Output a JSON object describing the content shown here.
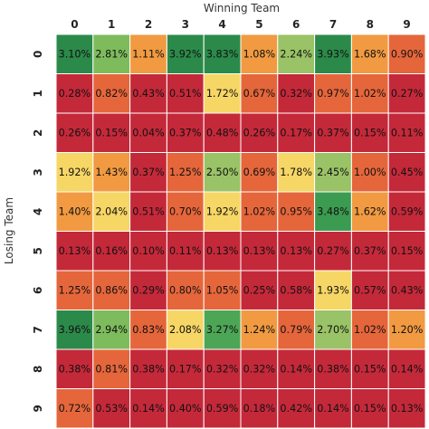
{
  "chart_data": {
    "type": "heatmap",
    "xlabel": "Winning Team",
    "ylabel": "Losing Team",
    "x_categories": [
      "0",
      "1",
      "2",
      "3",
      "4",
      "5",
      "6",
      "7",
      "8",
      "9"
    ],
    "y_categories": [
      "0",
      "1",
      "2",
      "3",
      "4",
      "5",
      "6",
      "7",
      "8",
      "9"
    ],
    "legend": "none",
    "grid": false,
    "color_scale": [
      "#c4293a",
      "#e5663b",
      "#f19a41",
      "#f6d665",
      "#9ac266",
      "#2b8a4a"
    ],
    "value_format": "percent_2dp",
    "values": [
      [
        3.1,
        2.81,
        1.11,
        3.92,
        3.83,
        1.08,
        2.24,
        3.93,
        1.68,
        0.9
      ],
      [
        0.28,
        0.82,
        0.43,
        0.51,
        1.72,
        0.67,
        0.32,
        0.97,
        1.02,
        0.27
      ],
      [
        0.26,
        0.15,
        0.04,
        0.37,
        0.48,
        0.26,
        0.17,
        0.37,
        0.15,
        0.11
      ],
      [
        1.92,
        1.43,
        0.37,
        1.25,
        2.5,
        0.69,
        1.78,
        2.45,
        1.0,
        0.45
      ],
      [
        1.4,
        2.04,
        0.51,
        0.7,
        1.92,
        1.02,
        0.95,
        3.48,
        1.62,
        0.59
      ],
      [
        0.13,
        0.16,
        0.1,
        0.11,
        0.13,
        0.13,
        0.13,
        0.27,
        0.37,
        0.15
      ],
      [
        1.25,
        0.86,
        0.29,
        0.8,
        1.05,
        0.25,
        0.58,
        1.93,
        0.57,
        0.43
      ],
      [
        3.96,
        2.94,
        0.83,
        2.08,
        3.27,
        1.24,
        0.79,
        2.7,
        1.02,
        1.2
      ],
      [
        0.38,
        0.81,
        0.38,
        0.17,
        0.32,
        0.32,
        0.14,
        0.38,
        0.15,
        0.14
      ],
      [
        0.72,
        0.53,
        0.14,
        0.4,
        0.59,
        0.18,
        0.42,
        0.14,
        0.15,
        0.13
      ]
    ],
    "cell_colors": [
      [
        "#2b8a4a",
        "#7dbb5c",
        "#f19a41",
        "#2b8a4a",
        "#2b8a4a",
        "#f19a41",
        "#9ac266",
        "#2b8a4a",
        "#f19a41",
        "#e5663b"
      ],
      [
        "#c4293a",
        "#e5663b",
        "#c4293a",
        "#c4293a",
        "#f6d665",
        "#e5663b",
        "#c4293a",
        "#e5663b",
        "#e5663b",
        "#c4293a"
      ],
      [
        "#c4293a",
        "#c4293a",
        "#c4293a",
        "#c4293a",
        "#c4293a",
        "#c4293a",
        "#c4293a",
        "#c4293a",
        "#c4293a",
        "#c4293a"
      ],
      [
        "#f6d665",
        "#f19a41",
        "#c4293a",
        "#e5663b",
        "#9ac266",
        "#e5663b",
        "#f6d665",
        "#9ac266",
        "#e5663b",
        "#c4293a"
      ],
      [
        "#f19a41",
        "#f6d665",
        "#c4293a",
        "#e5663b",
        "#f6d665",
        "#e5663b",
        "#e5663b",
        "#3b9b50",
        "#f19a41",
        "#c4293a"
      ],
      [
        "#c4293a",
        "#c4293a",
        "#c4293a",
        "#c4293a",
        "#c4293a",
        "#c4293a",
        "#c4293a",
        "#c4293a",
        "#c4293a",
        "#c4293a"
      ],
      [
        "#e5663b",
        "#e5663b",
        "#c4293a",
        "#e5663b",
        "#e5663b",
        "#c4293a",
        "#c4293a",
        "#f6d665",
        "#c4293a",
        "#c4293a"
      ],
      [
        "#2b8a4a",
        "#7dbb5c",
        "#e5663b",
        "#f6d665",
        "#4da656",
        "#f19a41",
        "#e5663b",
        "#9ac266",
        "#e5663b",
        "#f19a41"
      ],
      [
        "#c4293a",
        "#e5663b",
        "#c4293a",
        "#c4293a",
        "#c4293a",
        "#c4293a",
        "#c4293a",
        "#c4293a",
        "#c4293a",
        "#c4293a"
      ],
      [
        "#e5663b",
        "#c4293a",
        "#c4293a",
        "#c4293a",
        "#c4293a",
        "#c4293a",
        "#c4293a",
        "#c4293a",
        "#c4293a",
        "#c4293a"
      ]
    ]
  }
}
